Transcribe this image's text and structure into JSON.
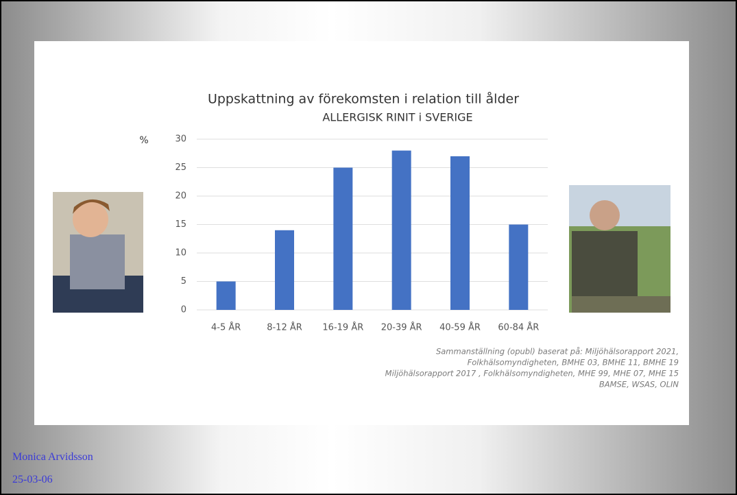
{
  "chart_data": {
    "type": "bar",
    "title": "Uppskattning av förekomsten i relation till ålder",
    "subtitle": "ALLERGISK RINIT i SVERIGE",
    "y_label": "%",
    "categories": [
      "4-5 ÅR",
      "8-12 ÅR",
      "16-19 ÅR",
      "20-39 ÅR",
      "40-59 ÅR",
      "60-84 ÅR"
    ],
    "values": [
      5,
      14,
      25,
      28,
      27,
      15
    ],
    "color": "#4472c4",
    "ylim": [
      0,
      30
    ],
    "yticks": [
      0,
      5,
      10,
      15,
      20,
      25,
      30
    ],
    "grid": true,
    "notes": [
      "Sammanställning (opubl) baserat på: Miljöhälsorapport 2021,",
      "Folkhälsomyndigheten, BMHE 03, BMHE 11, BMHE 19",
      "Miljöhälsorapport 2017 , Folkhälsomyndigheten, MHE 99, MHE 07, MHE 15",
      "BAMSE, WSAS, OLIN"
    ]
  },
  "footer": {
    "author": "Monica Arvidsson",
    "date": "25-03-06"
  }
}
